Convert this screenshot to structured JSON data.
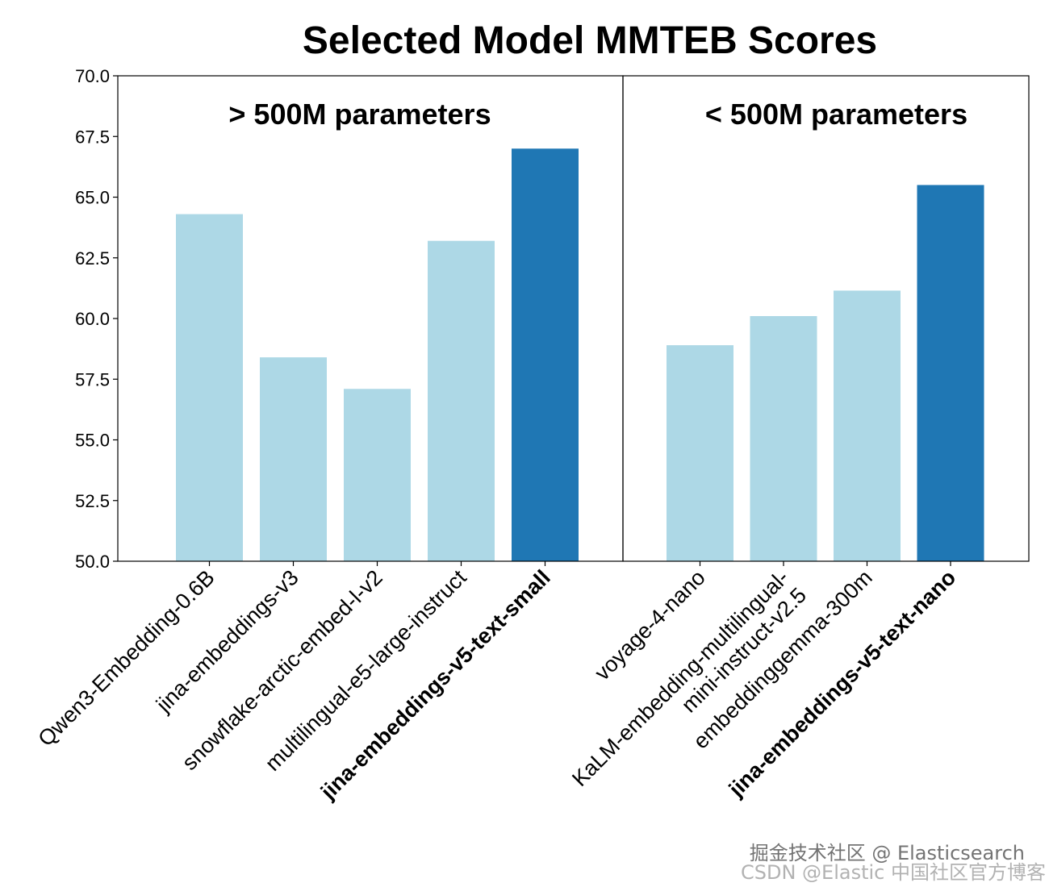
{
  "chart_data": {
    "type": "bar",
    "title": "Selected Model MMTEB Scores",
    "ylim": [
      50,
      70
    ],
    "yticks": [
      "50.0",
      "52.5",
      "55.0",
      "57.5",
      "60.0",
      "62.5",
      "65.0",
      "67.5",
      "70.0"
    ],
    "grid": false,
    "panels": [
      {
        "title": "> 500M parameters",
        "categories": [
          {
            "lines": [
              "Qwen3-Embedding-0.6B"
            ],
            "value": 64.3,
            "highlight": false
          },
          {
            "lines": [
              "jina-embeddings-v3"
            ],
            "value": 58.4,
            "highlight": false
          },
          {
            "lines": [
              "snowflake-arctic-embed-l-v2"
            ],
            "value": 57.1,
            "highlight": false
          },
          {
            "lines": [
              "multilingual-e5-large-instruct"
            ],
            "value": 63.2,
            "highlight": false
          },
          {
            "lines": [
              "jina-embeddings-v5-text-small"
            ],
            "value": 67.0,
            "highlight": true
          }
        ]
      },
      {
        "title": "< 500M parameters",
        "categories": [
          {
            "lines": [
              "voyage-4-nano"
            ],
            "value": 58.9,
            "highlight": false
          },
          {
            "lines": [
              "KaLM-embedding-multilingual-",
              "mini-instruct-v2.5"
            ],
            "value": 60.1,
            "highlight": false
          },
          {
            "lines": [
              "embeddinggemma-300m"
            ],
            "value": 61.15,
            "highlight": false
          },
          {
            "lines": [
              "jina-embeddings-v5-text-nano"
            ],
            "value": 65.5,
            "highlight": true
          }
        ]
      }
    ],
    "colors": {
      "default": "#add8e6",
      "highlight": "#1f77b4"
    }
  },
  "watermark": {
    "line1": "掘金技术社区 @ Elasticsearch",
    "line2": "CSDN @Elastic 中国社区官方博客"
  }
}
